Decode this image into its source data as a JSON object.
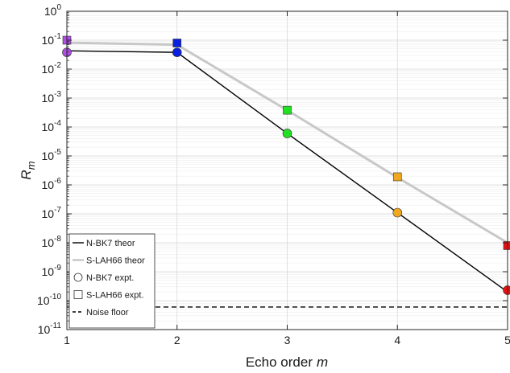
{
  "chart_data": {
    "type": "line",
    "xlabel": {
      "text": "Echo order",
      "var": "m"
    },
    "ylabel": {
      "var": "R",
      "sub": "m"
    },
    "xlim": [
      1,
      5
    ],
    "ylim_exponents": [
      -11,
      0
    ],
    "y_scale": "log",
    "xticks": [
      "1",
      "2",
      "3",
      "4",
      "5"
    ],
    "ytick_exponents": [
      "0",
      "-1",
      "-2",
      "-3",
      "-4",
      "-5",
      "-6",
      "-7",
      "-8",
      "-9",
      "-10",
      "-11"
    ],
    "grid": true,
    "legend_position": "bottom-left",
    "series": [
      {
        "name": "N-BK7 theor",
        "style": "line",
        "color": "#000000",
        "x": [
          1,
          2,
          3,
          4,
          5
        ],
        "y": [
          0.043,
          0.038,
          6e-05,
          1.1e-07,
          2e-10
        ]
      },
      {
        "name": "S-LAH66 theor",
        "style": "line",
        "color": "#c8c8c8",
        "x": [
          1,
          2,
          3,
          4,
          5
        ],
        "y": [
          0.082,
          0.07,
          0.00038,
          1.8e-06,
          1e-08
        ]
      },
      {
        "name": "N-BK7 expt.",
        "style": "circle",
        "x": [
          1,
          2,
          3,
          4,
          5
        ],
        "y": [
          0.038,
          0.038,
          6e-05,
          1.1e-07,
          2.3e-10
        ],
        "colors": [
          "#b04ee6",
          "#0a1fe0",
          "#22e022",
          "#f0a820",
          "#e81010"
        ]
      },
      {
        "name": "S-LAH66 expt.",
        "style": "square",
        "x": [
          1,
          2,
          3,
          4,
          5
        ],
        "y": [
          0.1,
          0.08,
          0.00038,
          1.9e-06,
          8e-09
        ],
        "colors": [
          "#b04ee6",
          "#0a1fe0",
          "#22e022",
          "#f0a820",
          "#e81010"
        ]
      },
      {
        "name": "Noise floor",
        "style": "dashed",
        "color": "#000000",
        "y_constant": 6e-11
      }
    ]
  }
}
